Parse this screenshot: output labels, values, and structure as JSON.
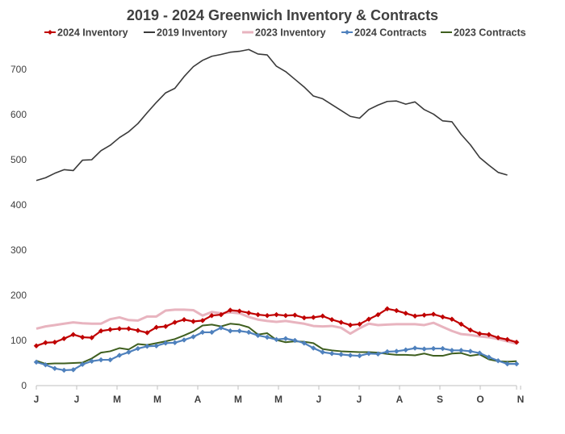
{
  "chart_data": {
    "type": "line",
    "title": "2019 - 2024 Greenwich Inventory & Contracts",
    "xlabel": "",
    "ylabel": "",
    "ylim": [
      0,
      750
    ],
    "yticks": [
      0,
      100,
      200,
      300,
      400,
      500,
      600,
      700
    ],
    "x_tick_labels": [
      "J",
      "J",
      "M",
      "M",
      "A",
      "M",
      "M",
      "J",
      "J",
      "A",
      "S",
      "O",
      "N"
    ],
    "legend_position": "top",
    "grid": false,
    "series": [
      {
        "name": "2024 Inventory",
        "color": "#c00000",
        "marker": "diamond",
        "values": [
          88,
          95,
          96,
          104,
          113,
          107,
          106,
          121,
          124,
          126,
          126,
          122,
          117,
          129,
          131,
          140,
          146,
          142,
          144,
          155,
          157,
          167,
          165,
          161,
          157,
          155,
          157,
          155,
          156,
          150,
          151,
          154,
          146,
          140,
          134,
          136,
          147,
          157,
          170,
          166,
          160,
          154,
          156,
          158,
          152,
          147,
          136,
          123,
          115,
          113,
          106,
          102,
          96
        ]
      },
      {
        "name": "2019 Inventory",
        "color": "#3a3a3a",
        "marker": "none",
        "values": [
          454,
          460,
          470,
          478,
          476,
          499,
          500,
          520,
          532,
          549,
          562,
          580,
          604,
          627,
          648,
          658,
          684,
          706,
          720,
          729,
          733,
          738,
          740,
          744,
          734,
          732,
          707,
          695,
          678,
          661,
          641,
          635,
          622,
          609,
          596,
          592,
          611,
          621,
          629,
          630,
          623,
          628,
          611,
          601,
          586,
          584,
          556,
          533,
          505,
          488,
          472,
          466
        ]
      },
      {
        "name": "2023 Inventory",
        "color": "#e8b4bf",
        "marker": "none",
        "values": [
          126,
          131,
          134,
          137,
          140,
          138,
          137,
          137,
          147,
          151,
          145,
          144,
          153,
          153,
          166,
          168,
          168,
          167,
          155,
          163,
          160,
          162,
          160,
          152,
          146,
          143,
          141,
          143,
          140,
          137,
          132,
          131,
          132,
          128,
          115,
          127,
          137,
          134,
          135,
          136,
          136,
          136,
          134,
          139,
          130,
          121,
          114,
          112,
          109,
          107,
          103,
          98,
          93
        ]
      },
      {
        "name": "2024 Contracts",
        "color": "#4f81bd",
        "marker": "diamond",
        "values": [
          52,
          46,
          38,
          34,
          35,
          47,
          54,
          57,
          57,
          67,
          74,
          82,
          87,
          88,
          94,
          95,
          101,
          108,
          118,
          118,
          128,
          121,
          121,
          118,
          111,
          107,
          102,
          104,
          100,
          94,
          83,
          74,
          71,
          69,
          67,
          66,
          71,
          70,
          75,
          76,
          79,
          83,
          81,
          82,
          82,
          78,
          78,
          76,
          72,
          63,
          55,
          48,
          48
        ]
      },
      {
        "name": "2023 Contracts",
        "color": "#3f5f1f",
        "marker": "none",
        "values": [
          55,
          48,
          49,
          49,
          50,
          51,
          60,
          73,
          76,
          83,
          80,
          92,
          90,
          94,
          98,
          103,
          111,
          120,
          133,
          135,
          131,
          137,
          135,
          129,
          113,
          116,
          101,
          96,
          98,
          97,
          94,
          81,
          78,
          76,
          75,
          74,
          74,
          73,
          70,
          68,
          68,
          67,
          71,
          66,
          66,
          71,
          72,
          66,
          69,
          58,
          54,
          53,
          54
        ]
      }
    ]
  }
}
